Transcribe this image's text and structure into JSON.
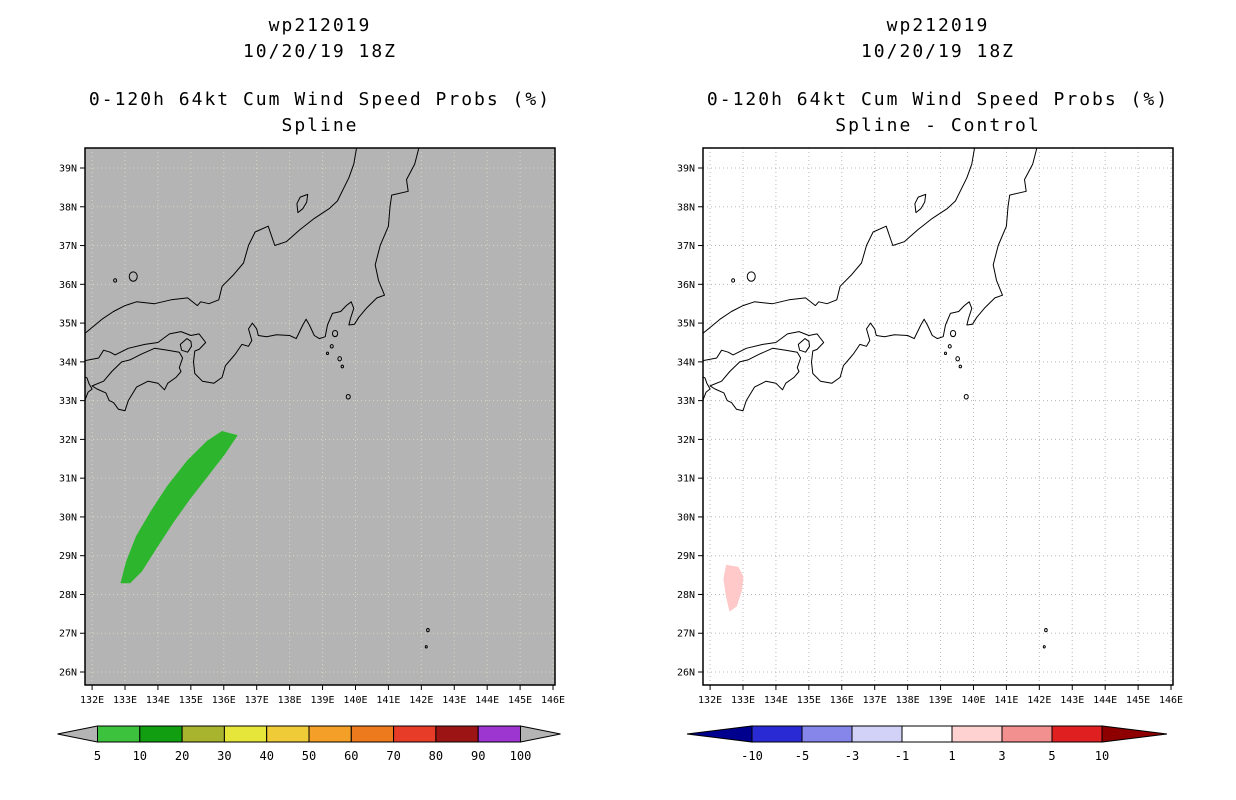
{
  "panels": [
    {
      "id": "spline",
      "title_line1": "wp212019",
      "title_line2": "10/20/19 18Z",
      "subtitle_line1": "0-120h 64kt Cum Wind Speed Probs (%)",
      "subtitle_line2": "Spline",
      "map": {
        "background": "#b4b4b4",
        "grid_color": "#d8d8c4",
        "coast_color": "#000000",
        "lat_labels": [
          "39N",
          "38N",
          "37N",
          "36N",
          "35N",
          "34N",
          "33N",
          "32N",
          "31N",
          "30N",
          "29N",
          "28N",
          "27N",
          "26N"
        ],
        "lon_labels": [
          "132E",
          "133E",
          "134E",
          "135E",
          "136E",
          "137E",
          "138E",
          "139E",
          "140E",
          "141E",
          "142E",
          "143E",
          "144E",
          "145E",
          "146E"
        ]
      },
      "colorbar": {
        "labels": [
          "5",
          "10",
          "20",
          "30",
          "40",
          "50",
          "60",
          "70",
          "80",
          "90",
          "100"
        ],
        "colors": [
          "#3cc23c",
          "#119f11",
          "#a8b42e",
          "#e6e63a",
          "#efcb37",
          "#f4a028",
          "#ee7a1e",
          "#e63c28",
          "#9c1414",
          "#9d36d0"
        ],
        "under_arrow": "#b4b4b4",
        "over_arrow": "#b4b4b4"
      }
    },
    {
      "id": "spline-control",
      "title_line1": "wp212019",
      "title_line2": "10/20/19 18Z",
      "subtitle_line1": "0-120h 64kt Cum Wind Speed Probs (%)",
      "subtitle_line2": "Spline - Control",
      "map": {
        "background": "#ffffff",
        "grid_color": "#b8b8b8",
        "coast_color": "#000000",
        "lat_labels": [
          "39N",
          "38N",
          "37N",
          "36N",
          "35N",
          "34N",
          "33N",
          "32N",
          "31N",
          "30N",
          "29N",
          "28N",
          "27N",
          "26N"
        ],
        "lon_labels": [
          "132E",
          "133E",
          "134E",
          "135E",
          "136E",
          "137E",
          "138E",
          "139E",
          "140E",
          "141E",
          "142E",
          "143E",
          "144E",
          "145E",
          "146E"
        ]
      },
      "colorbar": {
        "labels": [
          "-10",
          "-5",
          "-3",
          "-1",
          "1",
          "3",
          "5",
          "10"
        ],
        "colors": [
          "#2a2ad4",
          "#8585ea",
          "#d2d2f8",
          "#ffffff",
          "#ffd2d2",
          "#f29090",
          "#e02020"
        ],
        "under_arrow": "#00008e",
        "over_arrow": "#8e0000"
      }
    }
  ],
  "chart_data": [
    {
      "type": "filled-contour-map",
      "storm": "wp212019",
      "init_time": "10/20/19 18Z",
      "title": "0-120h 64kt Cum Wind Speed Probs (%)",
      "subtitle": "Spline",
      "lon_range_e": [
        132,
        146
      ],
      "lat_range_n": [
        26,
        39
      ],
      "grid": "dotted, 1 degree",
      "contour_levels_percent": [
        5,
        10,
        20,
        30,
        40,
        50,
        60,
        70,
        80,
        90,
        100
      ],
      "regions": [
        {
          "value": "5-20%",
          "color": "#2db62d",
          "polygon": [
            [
              132.88,
              28.3
            ],
            [
              133.05,
              28.85
            ],
            [
              133.35,
              29.5
            ],
            [
              133.8,
              30.15
            ],
            [
              134.3,
              30.8
            ],
            [
              134.9,
              31.45
            ],
            [
              135.5,
              31.95
            ],
            [
              135.95,
              32.2
            ],
            [
              136.4,
              32.1
            ],
            [
              136.0,
              31.6
            ],
            [
              135.5,
              31.05
            ],
            [
              134.95,
              30.45
            ],
            [
              134.45,
              29.85
            ],
            [
              133.95,
              29.2
            ],
            [
              133.5,
              28.6
            ],
            [
              133.15,
              28.3
            ]
          ]
        }
      ]
    },
    {
      "type": "filled-contour-map",
      "storm": "wp212019",
      "init_time": "10/20/19 18Z",
      "title": "0-120h 64kt Cum Wind Speed Probs (%)",
      "subtitle": "Spline - Control",
      "lon_range_e": [
        132,
        146
      ],
      "lat_range_n": [
        26,
        39
      ],
      "grid": "dotted, 1 degree",
      "contour_levels_percent": [
        -10,
        -5,
        -3,
        -1,
        1,
        3,
        5,
        10
      ],
      "regions": [
        {
          "value": "1-3%",
          "color": "#ffc9c9",
          "polygon": [
            [
              132.5,
              28.75
            ],
            [
              132.85,
              28.7
            ],
            [
              133.0,
              28.45
            ],
            [
              132.95,
              28.1
            ],
            [
              132.8,
              27.7
            ],
            [
              132.6,
              27.58
            ],
            [
              132.5,
              27.95
            ],
            [
              132.42,
              28.4
            ]
          ]
        }
      ]
    }
  ]
}
